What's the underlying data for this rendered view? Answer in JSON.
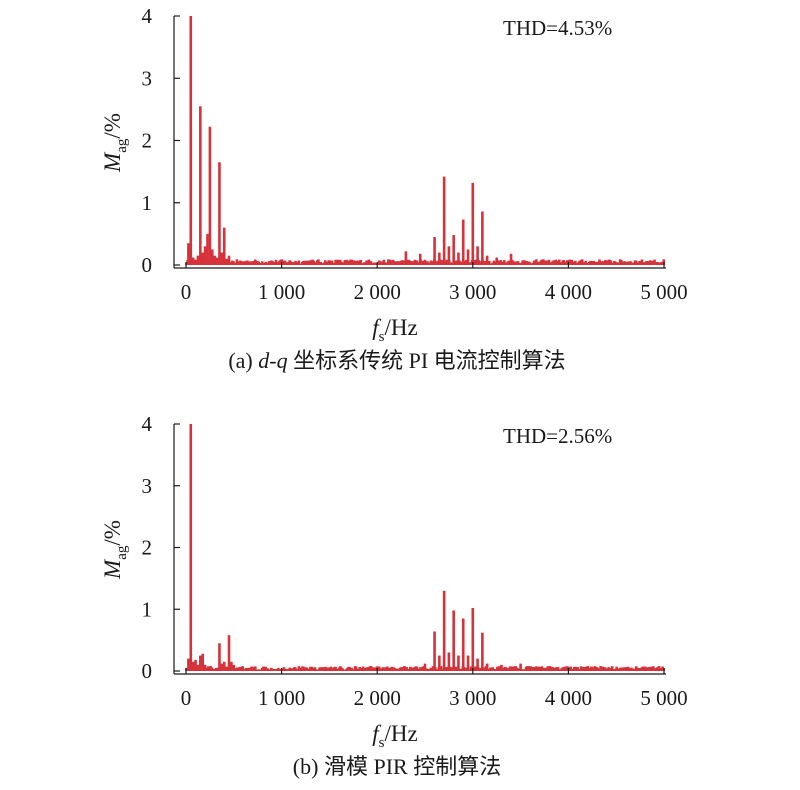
{
  "chart_data": [
    {
      "type": "bar",
      "panel": "a",
      "caption_prefix": "(a) ",
      "caption_italic": "d-q",
      "caption_rest": " 坐标系传统 PI 电流控制算法",
      "annotation": "THD=4.53%",
      "ylabel_main": "M",
      "ylabel_sub": "ag",
      "ylabel_unit": "/%",
      "xlabel_main": "f",
      "xlabel_sub": "s",
      "xlabel_unit": "/Hz",
      "xlim": [
        0,
        5000
      ],
      "ylim": [
        0,
        4
      ],
      "xticks": [
        0,
        1000,
        2000,
        3000,
        4000,
        5000
      ],
      "xtick_labels": [
        "0",
        "1 000",
        "2 000",
        "3 000",
        "4 000",
        "5 000"
      ],
      "yticks": [
        0,
        1,
        2,
        3,
        4
      ],
      "ytick_labels": [
        "0",
        "1",
        "2",
        "3",
        "4"
      ],
      "bar_color": "#d6323a",
      "peaks": [
        {
          "x": 25,
          "y": 0.35
        },
        {
          "x": 50,
          "y": 4.0
        },
        {
          "x": 75,
          "y": 0.12
        },
        {
          "x": 100,
          "y": 0.08
        },
        {
          "x": 125,
          "y": 0.15
        },
        {
          "x": 150,
          "y": 2.55
        },
        {
          "x": 175,
          "y": 0.2
        },
        {
          "x": 200,
          "y": 0.3
        },
        {
          "x": 225,
          "y": 0.5
        },
        {
          "x": 250,
          "y": 2.22
        },
        {
          "x": 275,
          "y": 0.25
        },
        {
          "x": 300,
          "y": 0.15
        },
        {
          "x": 325,
          "y": 0.12
        },
        {
          "x": 350,
          "y": 1.65
        },
        {
          "x": 375,
          "y": 0.2
        },
        {
          "x": 400,
          "y": 0.6
        },
        {
          "x": 425,
          "y": 0.1
        },
        {
          "x": 450,
          "y": 0.15
        },
        {
          "x": 2600,
          "y": 0.45
        },
        {
          "x": 2650,
          "y": 0.2
        },
        {
          "x": 2700,
          "y": 1.42
        },
        {
          "x": 2750,
          "y": 0.3
        },
        {
          "x": 2800,
          "y": 0.48
        },
        {
          "x": 2850,
          "y": 0.2
        },
        {
          "x": 2900,
          "y": 0.73
        },
        {
          "x": 2950,
          "y": 0.25
        },
        {
          "x": 3000,
          "y": 1.32
        },
        {
          "x": 3050,
          "y": 0.3
        },
        {
          "x": 3100,
          "y": 0.86
        },
        {
          "x": 3150,
          "y": 0.15
        },
        {
          "x": 2300,
          "y": 0.22
        },
        {
          "x": 2450,
          "y": 0.18
        },
        {
          "x": 3400,
          "y": 0.18
        },
        {
          "x": 3250,
          "y": 0.12
        }
      ],
      "noise_floor": 0.08
    },
    {
      "type": "bar",
      "panel": "b",
      "caption_prefix": "(b) ",
      "caption_italic": "",
      "caption_rest": "滑模 PIR 控制算法",
      "annotation": "THD=2.56%",
      "ylabel_main": "M",
      "ylabel_sub": "ag",
      "ylabel_unit": "/%",
      "xlabel_main": "f",
      "xlabel_sub": "s",
      "xlabel_unit": "/Hz",
      "xlim": [
        0,
        5000
      ],
      "ylim": [
        0,
        4
      ],
      "xticks": [
        0,
        1000,
        2000,
        3000,
        4000,
        5000
      ],
      "xtick_labels": [
        "0",
        "1 000",
        "2 000",
        "3 000",
        "4 000",
        "5 000"
      ],
      "yticks": [
        0,
        1,
        2,
        3,
        4
      ],
      "ytick_labels": [
        "0",
        "1",
        "2",
        "3",
        "4"
      ],
      "bar_color": "#d6323a",
      "peaks": [
        {
          "x": 25,
          "y": 0.2
        },
        {
          "x": 50,
          "y": 4.0
        },
        {
          "x": 75,
          "y": 0.15
        },
        {
          "x": 100,
          "y": 0.18
        },
        {
          "x": 125,
          "y": 0.1
        },
        {
          "x": 150,
          "y": 0.25
        },
        {
          "x": 175,
          "y": 0.28
        },
        {
          "x": 200,
          "y": 0.1
        },
        {
          "x": 350,
          "y": 0.45
        },
        {
          "x": 375,
          "y": 0.12
        },
        {
          "x": 400,
          "y": 0.15
        },
        {
          "x": 450,
          "y": 0.58
        },
        {
          "x": 475,
          "y": 0.15
        },
        {
          "x": 500,
          "y": 0.1
        },
        {
          "x": 2600,
          "y": 0.64
        },
        {
          "x": 2650,
          "y": 0.25
        },
        {
          "x": 2700,
          "y": 1.3
        },
        {
          "x": 2750,
          "y": 0.3
        },
        {
          "x": 2800,
          "y": 0.98
        },
        {
          "x": 2850,
          "y": 0.25
        },
        {
          "x": 2900,
          "y": 0.85
        },
        {
          "x": 2950,
          "y": 0.25
        },
        {
          "x": 3000,
          "y": 1.02
        },
        {
          "x": 3050,
          "y": 0.2
        },
        {
          "x": 3100,
          "y": 0.62
        },
        {
          "x": 3150,
          "y": 0.12
        },
        {
          "x": 3300,
          "y": 0.1
        },
        {
          "x": 3500,
          "y": 0.12
        },
        {
          "x": 2500,
          "y": 0.12
        }
      ],
      "noise_floor": 0.07
    }
  ]
}
